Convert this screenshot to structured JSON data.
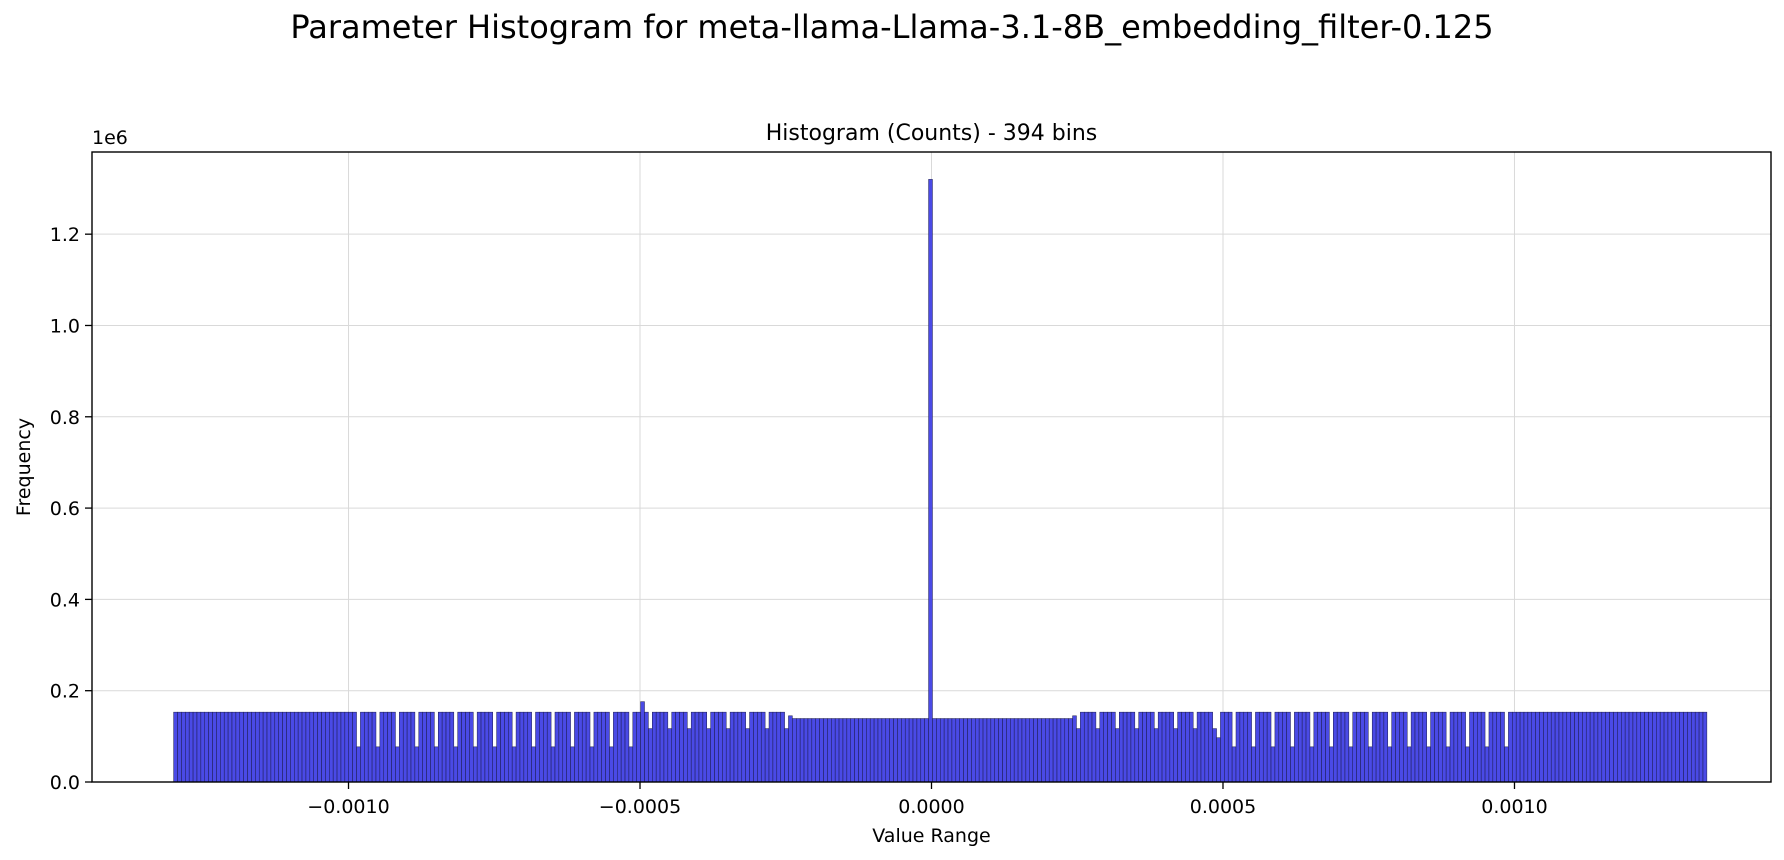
{
  "figure": {
    "suptitle": "Parameter Histogram for meta-llama-Llama-3.1-8B_embedding_filter-0.125"
  },
  "chart_data": {
    "type": "bar",
    "title": "Histogram (Counts) - 394 bins",
    "xlabel": "Value Range",
    "ylabel": "Frequency",
    "y_offset_label": "1e6",
    "xlim": [
      -0.00144,
      0.00144
    ],
    "ylim": [
      0,
      1.38
    ],
    "y_units": "millions",
    "x_ticks": [
      -0.001,
      -0.0005,
      0.0,
      0.0005,
      0.001
    ],
    "x_tick_labels": [
      "−0.0010",
      "−0.0005",
      "0.0000",
      "0.0005",
      "0.0010"
    ],
    "y_ticks": [
      0.0,
      0.2,
      0.4,
      0.6,
      0.8,
      1.0,
      1.2
    ],
    "y_tick_labels": [
      "0.0",
      "0.2",
      "0.4",
      "0.6",
      "0.8",
      "1.0",
      "1.2"
    ],
    "grid": true,
    "bar_color": "#4a4ae6",
    "bar_edge_color": "#1a1a4a",
    "bin_range": [
      -0.0013,
      0.00133
    ],
    "bin_count": 394,
    "peak": {
      "x": 0.0,
      "value": 1.32
    },
    "segments": [
      {
        "from": -0.0013,
        "to": -0.00101,
        "value": 0.153
      },
      {
        "from": -0.00101,
        "to": -0.000495,
        "value": 0.153,
        "alt_value": 0.077
      },
      {
        "from": -0.000495,
        "to": -0.000245,
        "value": 0.153,
        "alt_value": 0.117
      },
      {
        "from": -0.000245,
        "to": 0.000245,
        "value": 0.139
      },
      {
        "from": 0.000245,
        "to": 0.000495,
        "value": 0.153,
        "alt_value": 0.117
      },
      {
        "from": 0.000495,
        "to": 0.00101,
        "value": 0.153,
        "alt_value": 0.077
      },
      {
        "from": 0.00101,
        "to": 0.00133,
        "value": 0.153
      }
    ],
    "spikes": [
      {
        "x": -0.000495,
        "value": 0.176
      },
      {
        "x": -0.000245,
        "value": 0.145
      },
      {
        "x": 0.000245,
        "value": 0.145
      },
      {
        "x": 0.000495,
        "value": 0.097
      }
    ]
  }
}
